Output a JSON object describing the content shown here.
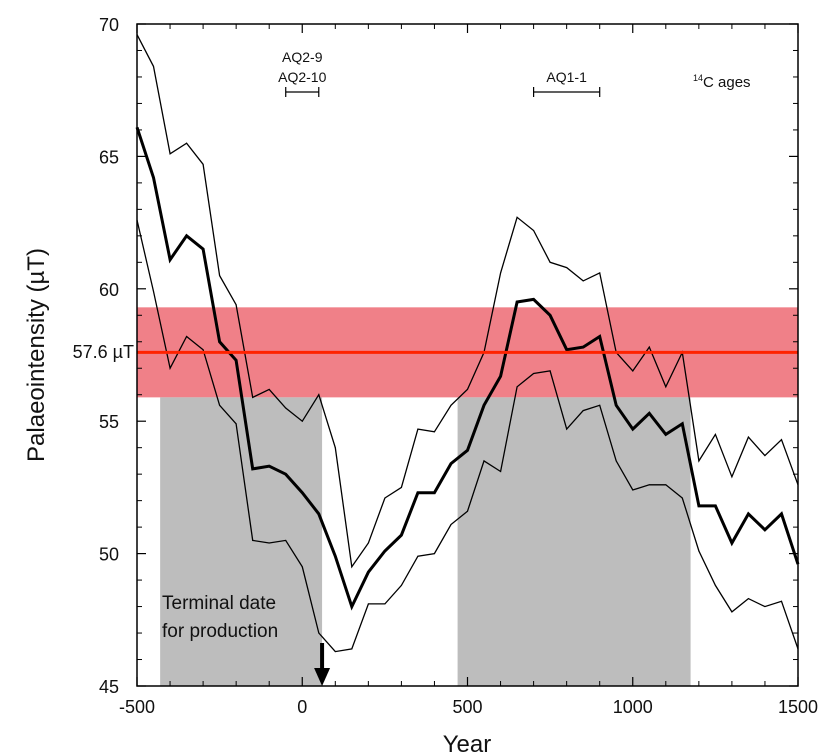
{
  "chart_data": {
    "type": "line",
    "xlabel": "Year",
    "ylabel": "Palaeointensity (µT)",
    "xlim": [
      -500,
      1500
    ],
    "ylim": [
      45,
      70
    ],
    "x_ticks": [
      -500,
      0,
      500,
      1000,
      1500
    ],
    "y_ticks": [
      45,
      50,
      55,
      60,
      65,
      70
    ],
    "grid": false,
    "reference": {
      "label": "57.6 µT",
      "value": 57.6,
      "band": [
        55.9,
        59.3
      ],
      "color": "#ff2200",
      "band_color": "#f08088"
    },
    "shaded_periods": [
      {
        "x": [
          -430,
          60
        ],
        "y": [
          45,
          55.9
        ]
      },
      {
        "x": [
          470,
          1175
        ],
        "y": [
          45,
          55.9
        ]
      }
    ],
    "c14_label": "14C ages",
    "c14_ages": [
      {
        "label": "AQ2-9",
        "range": [
          -50,
          50
        ],
        "stack": 0
      },
      {
        "label": "AQ2-10",
        "range": [
          -50,
          50
        ],
        "stack": 1
      },
      {
        "label": "AQ1-1",
        "range": [
          700,
          900
        ],
        "stack": 1
      }
    ],
    "annotation": {
      "lines": [
        "Terminal date",
        "for production"
      ],
      "arrow_x": 60
    },
    "x": [
      -500,
      -450,
      -400,
      -350,
      -300,
      -250,
      -200,
      -150,
      -100,
      -50,
      0,
      50,
      100,
      150,
      200,
      250,
      300,
      350,
      400,
      450,
      500,
      550,
      600,
      650,
      700,
      750,
      800,
      850,
      900,
      950,
      1000,
      1050,
      1100,
      1150,
      1200,
      1250,
      1300,
      1350,
      1400,
      1450,
      1500
    ],
    "series": [
      {
        "values": [
          69.6,
          68.4,
          65.1,
          65.5,
          64.7,
          60.5,
          59.4,
          55.9,
          56.2,
          55.5,
          55.0,
          56.0,
          54.0,
          49.5,
          50.4,
          52.1,
          52.5,
          54.7,
          54.6,
          55.6,
          56.2,
          57.6,
          60.6,
          62.7,
          62.2,
          61.0,
          60.8,
          60.3,
          60.6,
          57.6,
          56.9,
          57.8,
          56.3,
          57.6,
          53.5,
          54.5,
          52.9,
          54.4,
          53.7,
          54.3,
          52.6
        ],
        "width": 1.3
      },
      {
        "values": [
          66.1,
          64.2,
          61.1,
          62.0,
          61.5,
          58.0,
          57.3,
          53.2,
          53.3,
          53.0,
          52.3,
          51.5,
          49.9,
          48.0,
          49.3,
          50.1,
          50.7,
          52.3,
          52.3,
          53.4,
          53.9,
          55.6,
          56.7,
          59.5,
          59.6,
          59.0,
          57.7,
          57.8,
          58.2,
          55.6,
          54.7,
          55.3,
          54.5,
          54.9,
          51.8,
          51.8,
          50.4,
          51.5,
          50.9,
          51.5,
          49.6
        ],
        "width": 3
      },
      {
        "values": [
          62.6,
          59.9,
          57.0,
          58.2,
          57.7,
          55.6,
          54.9,
          50.5,
          50.4,
          50.5,
          49.5,
          47.0,
          46.3,
          46.4,
          48.1,
          48.1,
          48.8,
          49.9,
          50.0,
          51.1,
          51.6,
          53.5,
          53.1,
          56.3,
          56.8,
          56.9,
          54.7,
          55.4,
          55.6,
          53.5,
          52.4,
          52.6,
          52.6,
          52.1,
          50.1,
          48.8,
          47.8,
          48.3,
          48.0,
          48.2,
          46.4
        ],
        "width": 1.3
      }
    ]
  }
}
